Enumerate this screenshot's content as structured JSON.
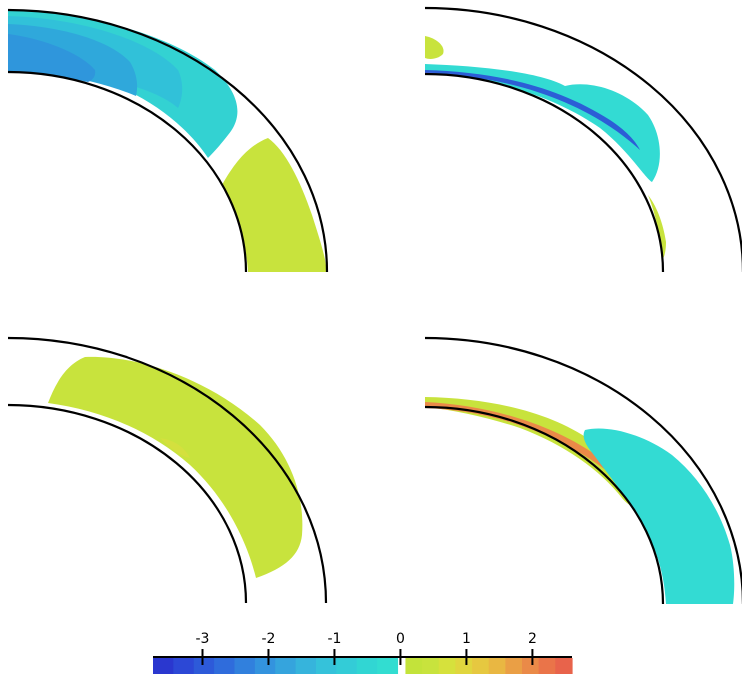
{
  "colorbar": {
    "ticks": [
      {
        "value": -3,
        "label": "-3"
      },
      {
        "value": -2,
        "label": "-2"
      },
      {
        "value": -1,
        "label": "-1"
      },
      {
        "value": 0,
        "label": "0"
      },
      {
        "value": 1,
        "label": "1"
      },
      {
        "value": 2,
        "label": "2"
      }
    ],
    "range": [
      -3.75,
      2.6
    ],
    "negative_colors": [
      "#2a37cf",
      "#2c48d6",
      "#2d5ad9",
      "#2f6cdc",
      "#3180dd",
      "#3393de",
      "#35a4dd",
      "#36b4dc",
      "#35c2da",
      "#33ccd7",
      "#31d6d3",
      "#32ddd1"
    ],
    "positive_colors": [
      "#c3e33a",
      "#c8e33d",
      "#d6e13c",
      "#e0d63e",
      "#e6c840",
      "#e9b742",
      "#ea9f45",
      "#ea8a48",
      "#ea7449",
      "#e8634b"
    ]
  },
  "panels": [
    {
      "id": "top-left",
      "fields": [
        {
          "shape": "outer-cap",
          "color": "#33d2d2"
        },
        {
          "shape": "outer-cap-inner1",
          "color": "#31c1d9"
        },
        {
          "shape": "outer-cap-inner2",
          "color": "#2fa8db"
        },
        {
          "shape": "outer-cap-inner3",
          "color": "#2f96dc"
        },
        {
          "shape": "lower-band",
          "color": "#c8e33d"
        }
      ]
    },
    {
      "id": "top-right",
      "fields": [
        {
          "shape": "inner-thin-band",
          "color": "#33dbd3"
        },
        {
          "shape": "inner-edge-line",
          "color": "#2c48d6"
        },
        {
          "shape": "small-blob",
          "color": "#c8e33d"
        },
        {
          "shape": "lower-sliver",
          "color": "#c8e33d"
        }
      ]
    },
    {
      "id": "bottom-left",
      "fields": [
        {
          "shape": "wide-band",
          "color": "#c8e33d"
        },
        {
          "shape": "faint-spot",
          "color": "#d4e03e"
        }
      ]
    },
    {
      "id": "bottom-right",
      "fields": [
        {
          "shape": "inner-positive-band",
          "color": "#c8e33d"
        },
        {
          "shape": "inner-orange-edge",
          "color": "#ea8a48"
        },
        {
          "shape": "outer-lower-band",
          "color": "#33dbd3"
        }
      ]
    }
  ]
}
